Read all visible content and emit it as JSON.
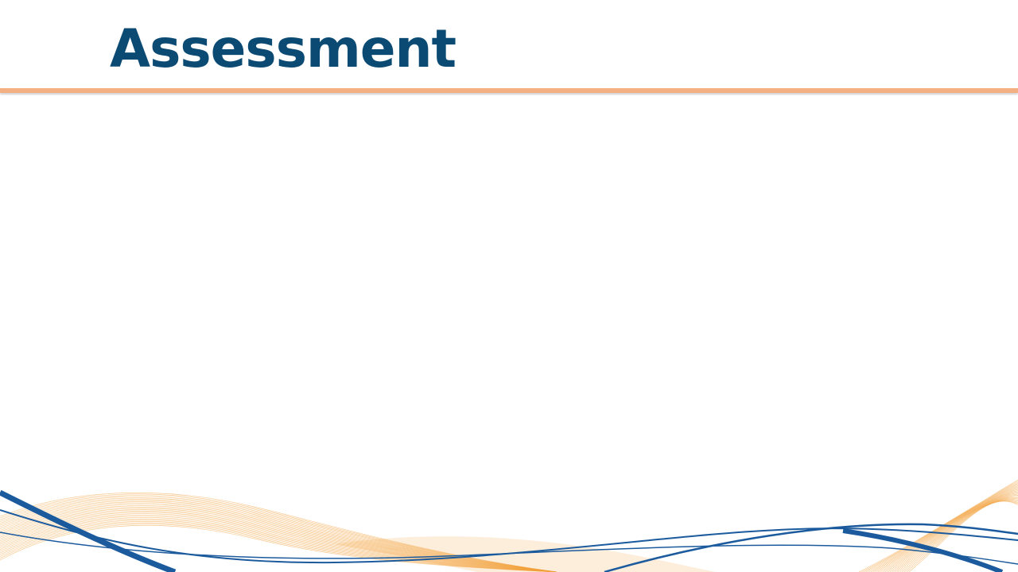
{
  "slide": {
    "title": "Assessment"
  },
  "colors": {
    "title": "#0b4a72",
    "rule": "#f2b083",
    "wave_blue": "#1b5a9c",
    "wave_orange": "#f3a13a"
  }
}
